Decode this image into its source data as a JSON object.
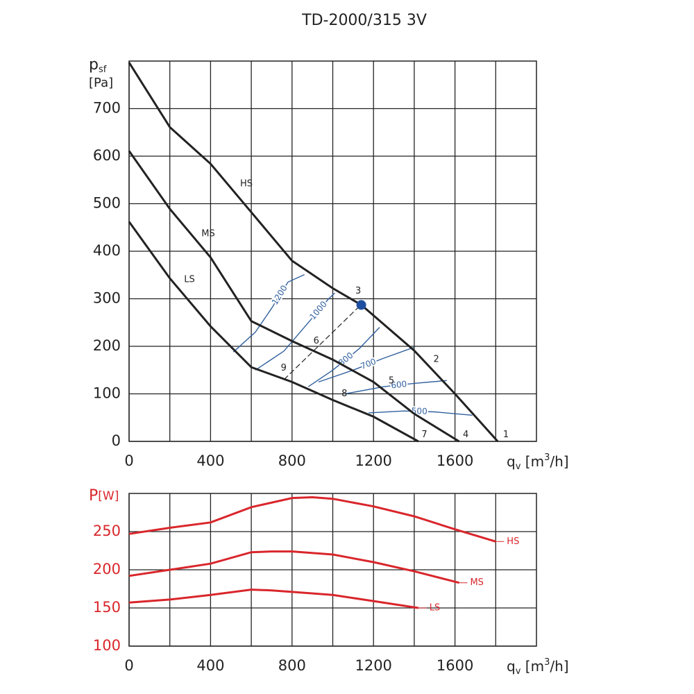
{
  "chart_data": [
    {
      "type": "line",
      "title": "TD-2000/315 3V",
      "ylabel": {
        "main": "p",
        "sub": "sf",
        "unit": "[Pa]"
      },
      "xlabel": {
        "main": "q",
        "sub": "v",
        "unit": " [m",
        "sup": "3",
        "end": "/h]"
      },
      "xlim": [
        0,
        2000
      ],
      "ylim": [
        0,
        800
      ],
      "xticks": [
        0,
        400,
        800,
        1200,
        1600
      ],
      "xminor": [
        200,
        600,
        1000,
        1400,
        1800
      ],
      "yticks": [
        0,
        100,
        200,
        300,
        400,
        500,
        600,
        700
      ],
      "grid": true,
      "tick_color": "#222222",
      "series": [
        {
          "name": "HS",
          "color": "#222222",
          "x": [
            0,
            200,
            400,
            600,
            800,
            1000,
            1140,
            1400,
            1600,
            1810
          ],
          "values": [
            797,
            661,
            584,
            482,
            380,
            322,
            287,
            191,
            100,
            0
          ]
        },
        {
          "name": "MS",
          "color": "#222222",
          "x": [
            0,
            200,
            400,
            600,
            800,
            1000,
            1200,
            1400,
            1620
          ],
          "values": [
            611,
            489,
            387,
            253,
            211,
            172,
            125,
            58,
            0
          ]
        },
        {
          "name": "LS",
          "color": "#222222",
          "x": [
            0,
            200,
            400,
            600,
            800,
            1000,
            1200,
            1420
          ],
          "values": [
            462,
            343,
            242,
            156,
            125,
            87,
            52,
            0
          ]
        }
      ],
      "system_lines": [
        {
          "name": "1200",
          "color": "#2f5f9e",
          "x": [
            512,
            620,
            700,
            780,
            861
          ],
          "values": [
            188,
            230,
            280,
            335,
            351
          ]
        },
        {
          "name": "1000",
          "color": "#2f5f9e",
          "x": [
            620,
            760,
            880,
            980,
            1010
          ],
          "values": [
            150,
            190,
            250,
            300,
            312
          ]
        },
        {
          "name": "800",
          "color": "#2f5f9e",
          "x": [
            880,
            1000,
            1130,
            1230
          ],
          "values": [
            115,
            150,
            195,
            240
          ]
        },
        {
          "name": "700",
          "color": "#2f5f9e",
          "x": [
            930,
            1100,
            1250,
            1400
          ],
          "values": [
            125,
            150,
            175,
            198
          ]
        },
        {
          "name": "600",
          "color": "#2f5f9e",
          "x": [
            1060,
            1250,
            1400,
            1560
          ],
          "values": [
            100,
            115,
            122,
            128
          ]
        },
        {
          "name": "500",
          "color": "#2f5f9e",
          "x": [
            1176,
            1350,
            1500,
            1685
          ],
          "values": [
            60,
            64,
            62,
            55
          ]
        }
      ],
      "points": [
        {
          "label": "1",
          "x": 1850,
          "y": 14
        },
        {
          "label": "2",
          "x": 1508,
          "y": 172
        },
        {
          "label": "3",
          "x": 1125,
          "y": 316
        },
        {
          "label": "4",
          "x": 1653,
          "y": 14
        },
        {
          "label": "5",
          "x": 1288,
          "y": 127
        },
        {
          "label": "6",
          "x": 919,
          "y": 211
        },
        {
          "label": "7",
          "x": 1450,
          "y": 14
        },
        {
          "label": "8",
          "x": 1057,
          "y": 100
        },
        {
          "label": "9",
          "x": 759,
          "y": 154
        }
      ],
      "dashed_line": {
        "x": [
          760,
          1140
        ],
        "values": [
          130,
          288
        ]
      },
      "marker": {
        "x": 1140,
        "y": 287,
        "color": "#1f4fa0"
      }
    },
    {
      "type": "line",
      "ylabel": {
        "main": "P",
        "unit": "[W]"
      },
      "xlabel": {
        "main": "q",
        "sub": "v",
        "unit": " [m",
        "sup": "3",
        "end": "/h]"
      },
      "xlim": [
        0,
        2000
      ],
      "ylim": [
        100,
        300
      ],
      "xticks": [
        0,
        400,
        800,
        1200,
        1600
      ],
      "xminor": [
        200,
        600,
        1000,
        1400,
        1800
      ],
      "yticks": [
        100,
        150,
        200,
        250
      ],
      "grid": true,
      "tick_color": "#d9262b",
      "series": [
        {
          "name": "HS",
          "color": "#d9262b",
          "x": [
            0,
            200,
            400,
            600,
            800,
            900,
            1000,
            1200,
            1400,
            1600,
            1800
          ],
          "values": [
            247,
            255,
            262,
            282,
            294,
            295,
            293,
            283,
            270,
            253,
            237
          ]
        },
        {
          "name": "MS",
          "color": "#d9262b",
          "x": [
            0,
            200,
            400,
            600,
            700,
            800,
            1000,
            1200,
            1400,
            1620
          ],
          "values": [
            192,
            200,
            208,
            223,
            224,
            224,
            220,
            210,
            198,
            183
          ]
        },
        {
          "name": "LS",
          "color": "#d9262b",
          "x": [
            0,
            200,
            400,
            600,
            700,
            800,
            1000,
            1200,
            1420
          ],
          "values": [
            157,
            161,
            167,
            174,
            173,
            171,
            167,
            159,
            150
          ]
        }
      ]
    }
  ]
}
